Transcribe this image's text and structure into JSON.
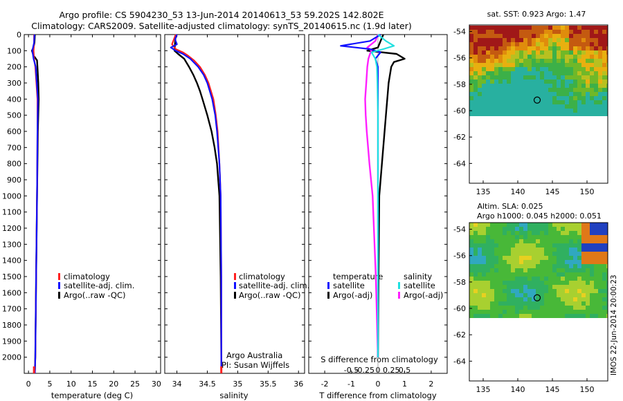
{
  "header": {
    "line1": "Argo profile: CS 5904230_53 13-Jun-2014 20140613_53 59.202S 142.802E",
    "line2": "Climatology: CARS2009. Satellite-adjusted climatology: synTS_20140615.nc (1.9d later)"
  },
  "colors": {
    "climatology": "#ff2020",
    "satellite": "#1010ff",
    "argo": "#000000",
    "sal_satellite": "#20e0e0",
    "sal_argo": "#ff20ff"
  },
  "panels": {
    "temperature": {
      "xlabel": "temperature (deg C)"
    },
    "salinity": {
      "xlabel": "salinity",
      "credit1": "Argo Australia",
      "credit2": "PI: Susan Wijffels"
    },
    "difference": {
      "xlabel": "T difference from climatology",
      "top_label": "S difference from climatology",
      "legend_t_title": "temperature",
      "legend_s_title": "salinity"
    }
  },
  "legend": {
    "climatology": "climatology",
    "satellite": "satellite-adj. clim.",
    "argo": "Argo(..raw -QC)"
  },
  "diff_legend": {
    "t_sat": "satellite",
    "t_argo": "Argo(-adj)",
    "s_sat": "satellite",
    "s_argo": "Argo(-adj)"
  },
  "maps": {
    "sst_title": "sat. SST: 0.923 Argo: 1.47",
    "sla_title1": "Altim. SLA: 0.025",
    "sla_title2": "Argo h1000: 0.045 h2000: 0.051",
    "stamp": "IMOS 22-Jun-2014 20:00:23",
    "yticks": [
      "-54",
      "-56",
      "-58",
      "-60",
      "-62",
      "-64"
    ],
    "xticks": [
      "135",
      "140",
      "145",
      "150"
    ]
  },
  "chart_data": [
    {
      "type": "line",
      "title": "",
      "xlabel": "temperature (deg C)",
      "ylabel": "",
      "xlim": [
        -1,
        31
      ],
      "ylim": [
        2100,
        0
      ],
      "xticks": [
        0,
        5,
        10,
        15,
        20,
        25,
        30
      ],
      "yticks": [
        0,
        100,
        200,
        300,
        400,
        500,
        600,
        700,
        800,
        900,
        1000,
        1100,
        1200,
        1300,
        1400,
        1500,
        1600,
        1700,
        1800,
        1900,
        2000
      ],
      "series": [
        {
          "name": "climatology",
          "depth": [
            0,
            50,
            100,
            150,
            200,
            400,
            600,
            1000,
            1500,
            2000,
            2100
          ],
          "values": [
            1.3,
            1.3,
            1.2,
            1.3,
            1.6,
            2.1,
            2.1,
            2.0,
            1.8,
            1.6,
            1.5
          ]
        },
        {
          "name": "satellite-adj. clim.",
          "depth": [
            0,
            50,
            100,
            150,
            200,
            400,
            600,
            1000,
            1500,
            2000,
            2100
          ],
          "values": [
            1.4,
            1.3,
            0.9,
            1.2,
            1.7,
            2.2,
            2.1,
            2.0,
            1.8,
            1.6,
            1.5
          ]
        },
        {
          "name": "Argo(..raw -QC)",
          "depth": [
            0,
            50,
            80,
            100,
            130,
            160,
            200,
            250,
            300,
            400,
            500,
            600,
            800,
            1000,
            1500,
            2000,
            2080
          ],
          "values": [
            1.5,
            1.4,
            1.2,
            0.8,
            1.2,
            2.0,
            2.1,
            2.2,
            2.3,
            2.4,
            2.3,
            2.2,
            2.1,
            2.0,
            1.8,
            1.6,
            1.5
          ]
        }
      ]
    },
    {
      "type": "line",
      "title": "",
      "xlabel": "salinity",
      "ylabel": "",
      "xlim": [
        33.8,
        36.1
      ],
      "ylim": [
        2100,
        0
      ],
      "xticks": [
        34,
        34.5,
        35,
        35.5,
        36
      ],
      "series": [
        {
          "name": "climatology",
          "depth": [
            0,
            30,
            60,
            90,
            110,
            130,
            160,
            200,
            250,
            300,
            400,
            500,
            600,
            800,
            1000,
            1500,
            2000,
            2100
          ],
          "values": [
            33.98,
            33.95,
            33.92,
            33.98,
            34.1,
            34.18,
            34.28,
            34.38,
            34.46,
            34.52,
            34.6,
            34.64,
            34.67,
            34.7,
            34.72,
            34.73,
            34.73,
            34.73
          ]
        },
        {
          "name": "satellite-adj. clim.",
          "depth": [
            0,
            30,
            60,
            80,
            100,
            120,
            150,
            200,
            250,
            300,
            400,
            500,
            600,
            800,
            1000,
            1500,
            2000,
            2100
          ],
          "values": [
            34.0,
            33.97,
            34.0,
            33.9,
            33.98,
            34.1,
            34.22,
            34.35,
            34.44,
            34.5,
            34.58,
            34.63,
            34.66,
            34.7,
            34.72,
            34.73,
            34.73,
            34.73
          ]
        },
        {
          "name": "Argo(..raw -QC)",
          "depth": [
            0,
            50,
            100,
            120,
            150,
            200,
            250,
            300,
            350,
            400,
            500,
            600,
            700,
            800,
            1000,
            1500,
            2000,
            2080
          ],
          "values": [
            33.98,
            33.97,
            33.96,
            34.02,
            34.12,
            34.2,
            34.27,
            34.33,
            34.38,
            34.42,
            34.5,
            34.57,
            34.62,
            34.66,
            34.7,
            34.72,
            34.73,
            34.73
          ]
        }
      ]
    },
    {
      "type": "line",
      "title": "",
      "xlabel": "T difference from climatology",
      "x2label": "S difference from climatology",
      "xlim": [
        -2.6,
        2.6
      ],
      "ylim": [
        2100,
        0
      ],
      "xticks": [
        -2,
        -1,
        0,
        1,
        2
      ],
      "x2ticks": [
        -0.5,
        -0.25,
        0,
        0.25,
        0.5
      ],
      "series": [
        {
          "name": "temperature satellite",
          "depth": [
            0,
            40,
            70,
            90,
            110,
            150,
            200,
            300,
            500,
            1000,
            1500,
            2000
          ],
          "values": [
            0.1,
            -0.3,
            -1.4,
            -0.3,
            0.1,
            -0.1,
            0.0,
            0.0,
            0.0,
            0.0,
            0.0,
            0.0
          ]
        },
        {
          "name": "temperature Argo(-adj)",
          "depth": [
            0,
            40,
            80,
            100,
            120,
            150,
            170,
            200,
            300,
            500,
            1000,
            1500,
            2000
          ],
          "values": [
            0.2,
            0.1,
            0.0,
            -0.4,
            0.7,
            1.0,
            0.6,
            0.5,
            0.4,
            0.3,
            0.05,
            0.02,
            0.0
          ]
        },
        {
          "name": "salinity satellite",
          "depth": [
            0,
            40,
            70,
            90,
            110,
            150,
            200,
            300,
            500,
            1000,
            1500,
            2000
          ],
          "values": [
            0.0,
            0.15,
            0.3,
            0.1,
            -0.12,
            -0.05,
            -0.02,
            -0.01,
            0.0,
            0.0,
            0.0,
            0.0
          ]
        },
        {
          "name": "salinity Argo(-adj)",
          "depth": [
            0,
            40,
            80,
            100,
            120,
            150,
            200,
            300,
            400,
            500,
            600,
            800,
            1000,
            1500,
            2000
          ],
          "values": [
            0.0,
            -0.05,
            -0.2,
            -0.12,
            -0.15,
            -0.18,
            -0.2,
            -0.22,
            -0.24,
            -0.23,
            -0.21,
            -0.16,
            -0.1,
            -0.04,
            0.0
          ]
        }
      ]
    }
  ]
}
